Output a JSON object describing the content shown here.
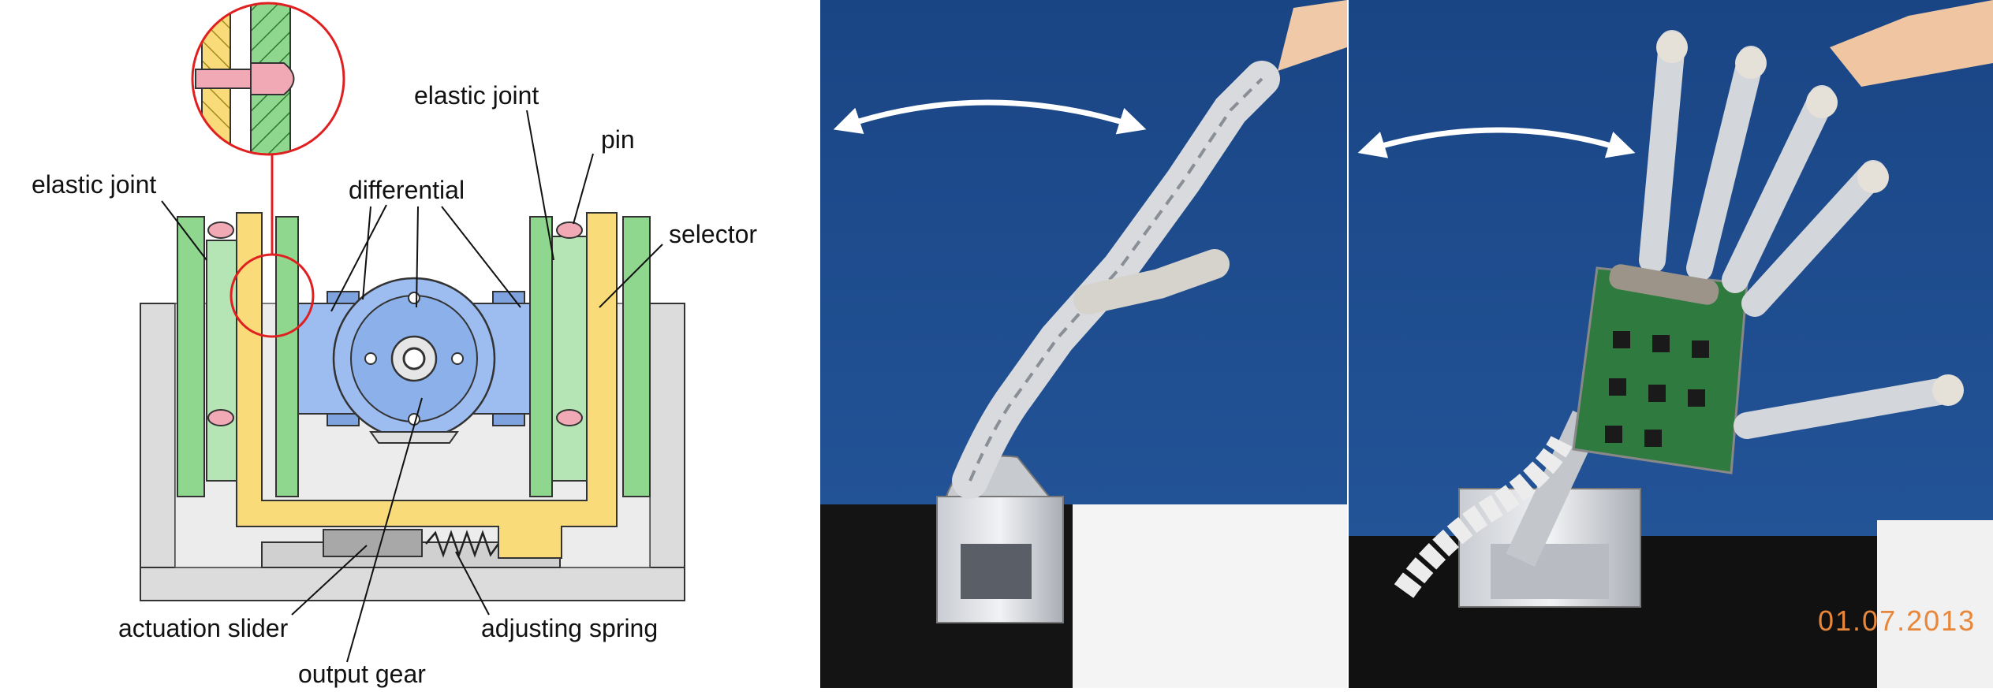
{
  "diagram": {
    "labels": {
      "elastic_joint_left": "elastic joint",
      "elastic_joint_right": "elastic joint",
      "pin": "pin",
      "differential": "differential",
      "selector": "selector",
      "actuation_slider": "actuation slider",
      "adjusting_spring": "adjusting spring",
      "output_gear": "output gear"
    },
    "colors": {
      "frame": "#dcdcdc",
      "elastic": "#8fd68f",
      "selector": "#f9dc79",
      "differential": "#9dbcf0",
      "pin": "#f2a9b6",
      "highlight": "#e02020"
    }
  },
  "photos": {
    "date_stamp": "01.07.2013",
    "background_color": "#1f4f8f"
  }
}
